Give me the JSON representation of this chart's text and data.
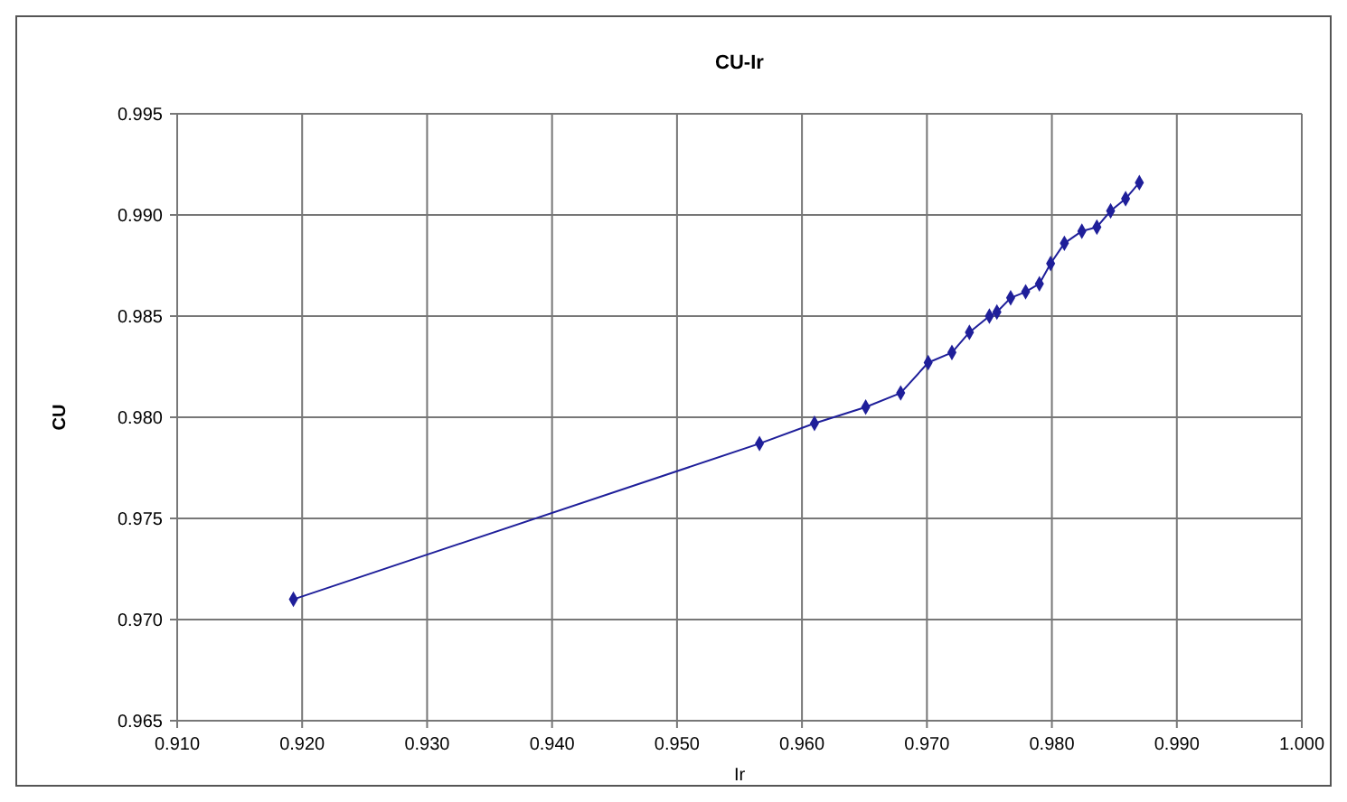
{
  "chart_data": {
    "type": "line",
    "title": "CU-Ir",
    "xlabel": "Ir",
    "ylabel": "CU",
    "x": [
      0.9193,
      0.9566,
      0.961,
      0.9651,
      0.9679,
      0.9701,
      0.972,
      0.9734,
      0.975,
      0.9756,
      0.9767,
      0.9779,
      0.979,
      0.9799,
      0.981,
      0.9824,
      0.9836,
      0.9847,
      0.9859,
      0.987
    ],
    "series": [
      {
        "color": "#1f1f9a",
        "values": [
          0.971,
          0.9787,
          0.9797,
          0.9805,
          0.9812,
          0.9827,
          0.9832,
          0.9842,
          0.985,
          0.9852,
          0.9859,
          0.9862,
          0.9866,
          0.9876,
          0.9886,
          0.9892,
          0.9894,
          0.9902,
          0.9908,
          0.9916
        ]
      }
    ],
    "xlim": [
      0.91,
      1.0
    ],
    "xticks": [
      {
        "value": 0.91,
        "label": "0.910"
      },
      {
        "value": 0.92,
        "label": "0.920"
      },
      {
        "value": 0.93,
        "label": "0.930"
      },
      {
        "value": 0.94,
        "label": "0.940"
      },
      {
        "value": 0.95,
        "label": "0.950"
      },
      {
        "value": 0.96,
        "label": "0.960"
      },
      {
        "value": 0.97,
        "label": "0.970"
      },
      {
        "value": 0.98,
        "label": "0.980"
      },
      {
        "value": 0.99,
        "label": "0.990"
      },
      {
        "value": 1.0,
        "label": "1.000"
      }
    ],
    "ylim": [
      0.965,
      0.995
    ],
    "yticks": [
      {
        "value": 0.965,
        "label": "0.965"
      },
      {
        "value": 0.97,
        "label": "0.970"
      },
      {
        "value": 0.975,
        "label": "0.975"
      },
      {
        "value": 0.98,
        "label": "0.980"
      },
      {
        "value": 0.985,
        "label": "0.985"
      },
      {
        "value": 0.99,
        "label": "0.990"
      },
      {
        "value": 0.995,
        "label": "0.995"
      }
    ],
    "grid": true,
    "marker": "diamond",
    "line_style": "solid"
  }
}
